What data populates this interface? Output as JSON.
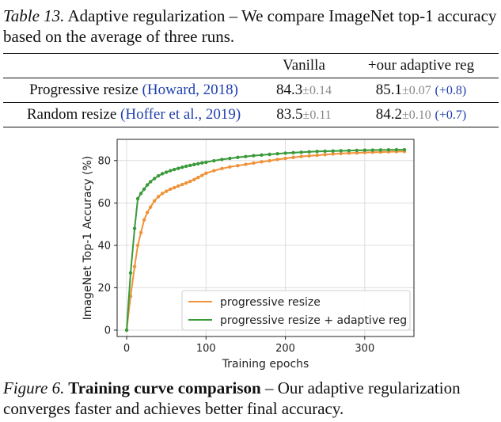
{
  "table_caption": {
    "label": "Table 13.",
    "text": " Adaptive regularization – We compare ImageNet top-1 accuracy based on the average of three runs."
  },
  "table": {
    "headers": [
      "",
      "Vanilla",
      "+our adaptive reg"
    ],
    "rows": [
      {
        "method": "Progressive resize ",
        "citation": "(Howard, 2018)",
        "vanilla": "84.3",
        "vanilla_pm": "±0.14",
        "ours": "85.1",
        "ours_pm": "±0.07",
        "gain": "(+0.8)"
      },
      {
        "method": "Random resize ",
        "citation": "(Hoffer et al., 2019)",
        "vanilla": "83.5",
        "vanilla_pm": "±0.11",
        "ours": "84.2",
        "ours_pm": "±0.10",
        "gain": "(+0.7)"
      }
    ]
  },
  "figure_caption": {
    "label": "Figure 6.",
    "title": " Training curve comparison",
    "text": " – Our adaptive regularization converges faster and achieves better final accuracy."
  },
  "chart_data": {
    "type": "line",
    "title": "",
    "xlabel": "Training epochs",
    "ylabel": "ImageNet Top-1 Accuracy (%)",
    "xlim": [
      -12,
      362
    ],
    "ylim": [
      -3,
      90
    ],
    "xticks": [
      0,
      100,
      200,
      300
    ],
    "yticks": [
      0,
      20,
      40,
      60,
      80
    ],
    "grid": true,
    "legend_position": "lower-right",
    "series": [
      {
        "name": "progressive resize",
        "color": "#f0923a",
        "x": [
          0,
          5,
          10,
          14,
          18,
          22,
          26,
          30,
          35,
          40,
          45,
          50,
          55,
          60,
          65,
          70,
          75,
          80,
          85,
          90,
          95,
          100,
          110,
          120,
          130,
          140,
          150,
          160,
          170,
          180,
          190,
          200,
          210,
          220,
          230,
          240,
          250,
          260,
          270,
          280,
          290,
          300,
          310,
          320,
          330,
          340,
          350
        ],
        "y": [
          0,
          16,
          30,
          40,
          46,
          52,
          55.5,
          58,
          61,
          63,
          64.5,
          65.5,
          66.5,
          67.2,
          68,
          68.7,
          69.4,
          70.2,
          71,
          72,
          73,
          74,
          75.2,
          76.2,
          77,
          77.6,
          78.2,
          78.8,
          79.4,
          79.9,
          80.5,
          81,
          81.5,
          81.9,
          82.2,
          82.5,
          82.8,
          83.1,
          83.3,
          83.5,
          83.6,
          83.8,
          83.9,
          84,
          84.1,
          84.2,
          84.3
        ]
      },
      {
        "name": "progressive resize + adaptive reg",
        "color": "#3a9a3a",
        "x": [
          0,
          5,
          10,
          14,
          18,
          22,
          26,
          30,
          35,
          40,
          45,
          50,
          55,
          60,
          65,
          70,
          75,
          80,
          85,
          90,
          95,
          100,
          110,
          120,
          130,
          140,
          150,
          160,
          170,
          180,
          190,
          200,
          210,
          220,
          230,
          240,
          250,
          260,
          270,
          280,
          290,
          300,
          310,
          320,
          330,
          340,
          350
        ],
        "y": [
          0,
          27,
          48,
          62,
          64.5,
          66.5,
          68.5,
          70,
          71.5,
          72.8,
          73.8,
          74.5,
          75.2,
          75.8,
          76.3,
          76.8,
          77.3,
          77.7,
          78.1,
          78.5,
          78.9,
          79.2,
          79.9,
          80.5,
          81,
          81.5,
          81.9,
          82.3,
          82.6,
          82.9,
          83.2,
          83.5,
          83.7,
          83.9,
          84.1,
          84.3,
          84.4,
          84.5,
          84.6,
          84.7,
          84.8,
          84.9,
          84.95,
          85,
          85.05,
          85.1,
          85.1
        ]
      }
    ]
  }
}
